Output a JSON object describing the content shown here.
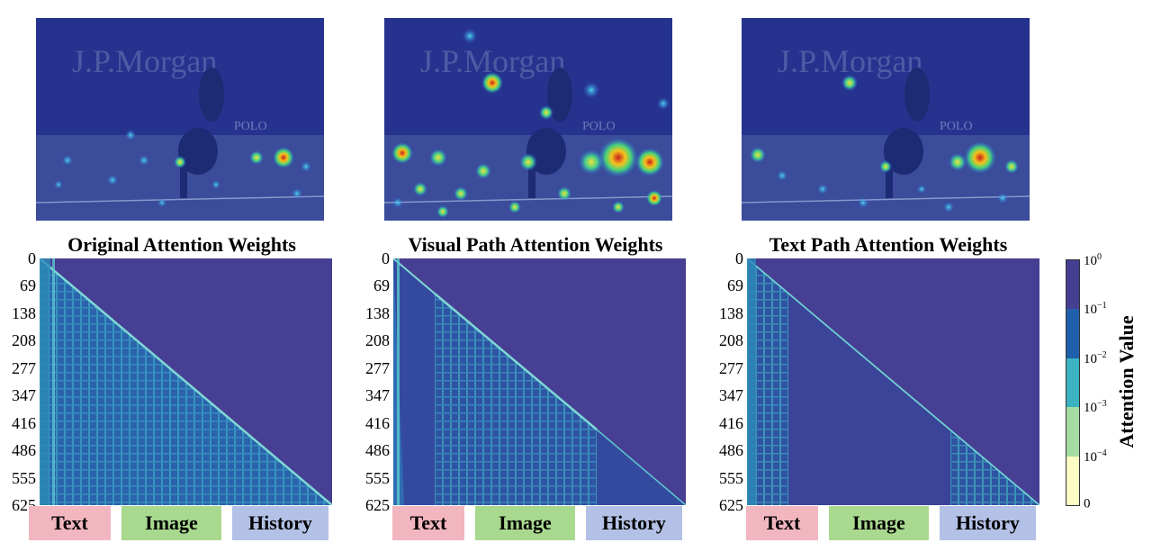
{
  "photo": {
    "banner_text": "J.P.Morgan",
    "sign_text": "POLO"
  },
  "panels": [
    {
      "id": "original",
      "title": "Original Attention Weights"
    },
    {
      "id": "visual",
      "title": "Visual Path Attention Weights"
    },
    {
      "id": "text",
      "title": "Text Path Attention Weights"
    }
  ],
  "y_ticks": [
    "0",
    "69",
    "138",
    "208",
    "277",
    "347",
    "416",
    "486",
    "555",
    "625"
  ],
  "segments": {
    "text": "Text",
    "image": "Image",
    "history": "History"
  },
  "colorbar": {
    "label": "Attention Value",
    "ticks": [
      {
        "base": "10",
        "exp": "0"
      },
      {
        "base": "10",
        "exp": "−1"
      },
      {
        "base": "10",
        "exp": "−2"
      },
      {
        "base": "10",
        "exp": "−3"
      },
      {
        "base": "10",
        "exp": "−4"
      },
      {
        "base": "0",
        "exp": ""
      }
    ],
    "colors": [
      "#fdfcc4",
      "#a5dca2",
      "#3bb3c2",
      "#2060aa",
      "#453f92"
    ]
  }
}
